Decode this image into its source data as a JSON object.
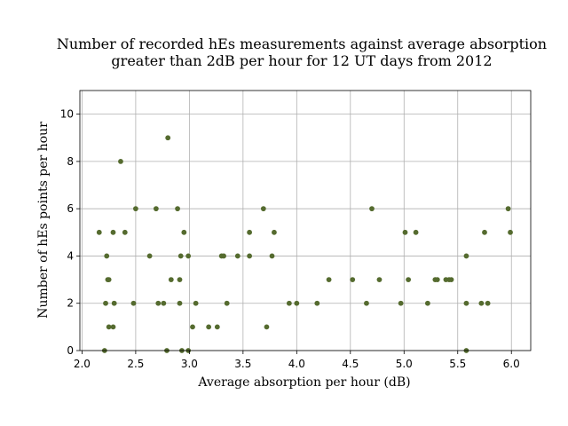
{
  "chart_data": {
    "type": "scatter",
    "title_lines": [
      "Number of recorded hEs measurements against average absorption",
      "greater than 2dB per hour for 12 UT days from 2012"
    ],
    "xlabel": "Average absorption per hour (dB)",
    "ylabel": "Number of hEs points per hour",
    "xlim": [
      1.98,
      6.18
    ],
    "ylim": [
      0,
      11
    ],
    "xticks": [
      "2.0",
      "2.5",
      "3.0",
      "3.5",
      "4.0",
      "4.5",
      "5.0",
      "5.5",
      "6.0"
    ],
    "yticks": [
      "0",
      "2",
      "4",
      "6",
      "8",
      "10"
    ],
    "grid": true,
    "marker_color": "#556b2f",
    "points": [
      [
        2.16,
        5
      ],
      [
        2.21,
        0
      ],
      [
        2.22,
        2
      ],
      [
        2.23,
        4
      ],
      [
        2.24,
        3
      ],
      [
        2.25,
        3
      ],
      [
        2.25,
        1
      ],
      [
        2.29,
        1
      ],
      [
        2.29,
        5
      ],
      [
        2.3,
        2
      ],
      [
        2.36,
        8
      ],
      [
        2.4,
        5
      ],
      [
        2.48,
        2
      ],
      [
        2.5,
        6
      ],
      [
        2.63,
        4
      ],
      [
        2.69,
        6
      ],
      [
        2.71,
        2
      ],
      [
        2.76,
        2
      ],
      [
        2.79,
        0
      ],
      [
        2.8,
        9
      ],
      [
        2.83,
        3
      ],
      [
        2.89,
        6
      ],
      [
        2.91,
        2
      ],
      [
        2.91,
        3
      ],
      [
        2.92,
        4
      ],
      [
        2.93,
        0
      ],
      [
        2.95,
        5
      ],
      [
        2.99,
        0
      ],
      [
        2.99,
        4
      ],
      [
        3.03,
        1
      ],
      [
        3.06,
        2
      ],
      [
        3.18,
        1
      ],
      [
        3.26,
        1
      ],
      [
        3.3,
        4
      ],
      [
        3.32,
        4
      ],
      [
        3.35,
        2
      ],
      [
        3.45,
        4
      ],
      [
        3.56,
        5
      ],
      [
        3.56,
        4
      ],
      [
        3.69,
        6
      ],
      [
        3.72,
        1
      ],
      [
        3.77,
        4
      ],
      [
        3.79,
        5
      ],
      [
        3.93,
        2
      ],
      [
        4.0,
        2
      ],
      [
        4.19,
        2
      ],
      [
        4.3,
        3
      ],
      [
        4.52,
        3
      ],
      [
        4.65,
        2
      ],
      [
        4.7,
        6
      ],
      [
        4.77,
        3
      ],
      [
        4.97,
        2
      ],
      [
        5.01,
        5
      ],
      [
        5.04,
        3
      ],
      [
        5.11,
        5
      ],
      [
        5.22,
        2
      ],
      [
        5.29,
        3
      ],
      [
        5.31,
        3
      ],
      [
        5.39,
        3
      ],
      [
        5.42,
        3
      ],
      [
        5.44,
        3
      ],
      [
        5.58,
        4
      ],
      [
        5.58,
        2
      ],
      [
        5.58,
        0
      ],
      [
        5.72,
        2
      ],
      [
        5.75,
        5
      ],
      [
        5.78,
        2
      ],
      [
        5.97,
        6
      ],
      [
        5.99,
        5
      ]
    ]
  }
}
